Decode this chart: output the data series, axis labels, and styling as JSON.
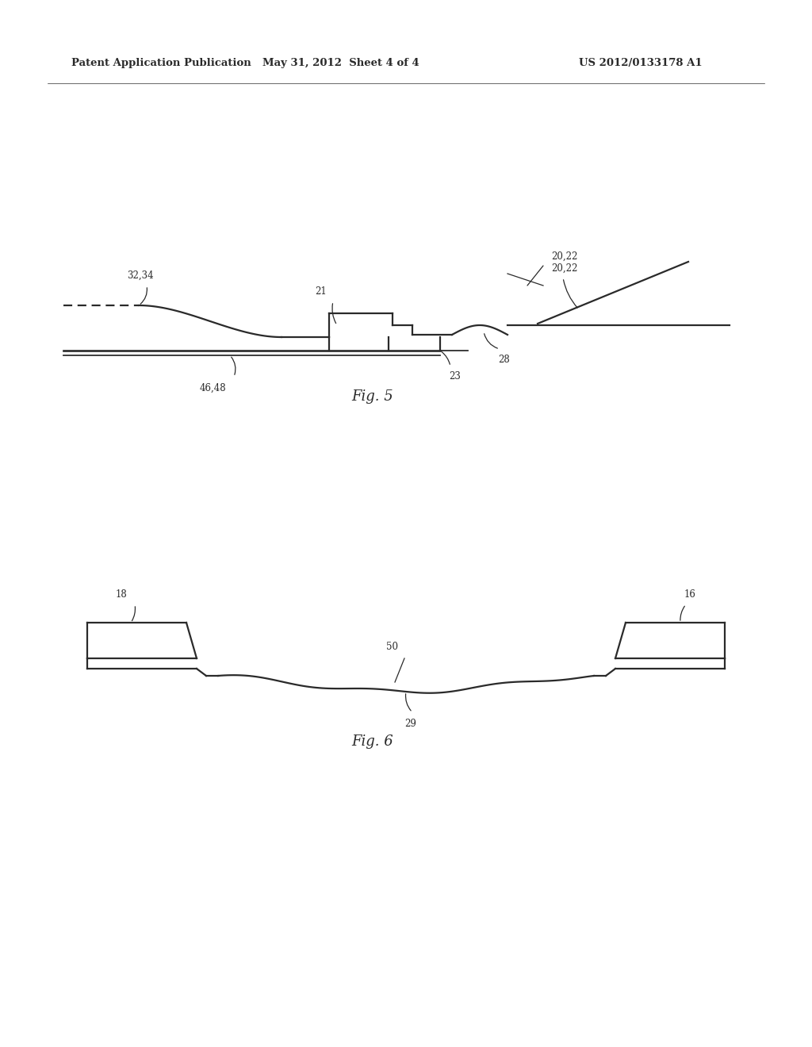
{
  "background_color": "#ffffff",
  "line_color": "#2a2a2a",
  "header_left": "Patent Application Publication",
  "header_center": "May 31, 2012  Sheet 4 of 4",
  "header_right": "US 2012/0133178 A1",
  "fig5_label": "Fig. 5",
  "fig6_label": "Fig. 6"
}
